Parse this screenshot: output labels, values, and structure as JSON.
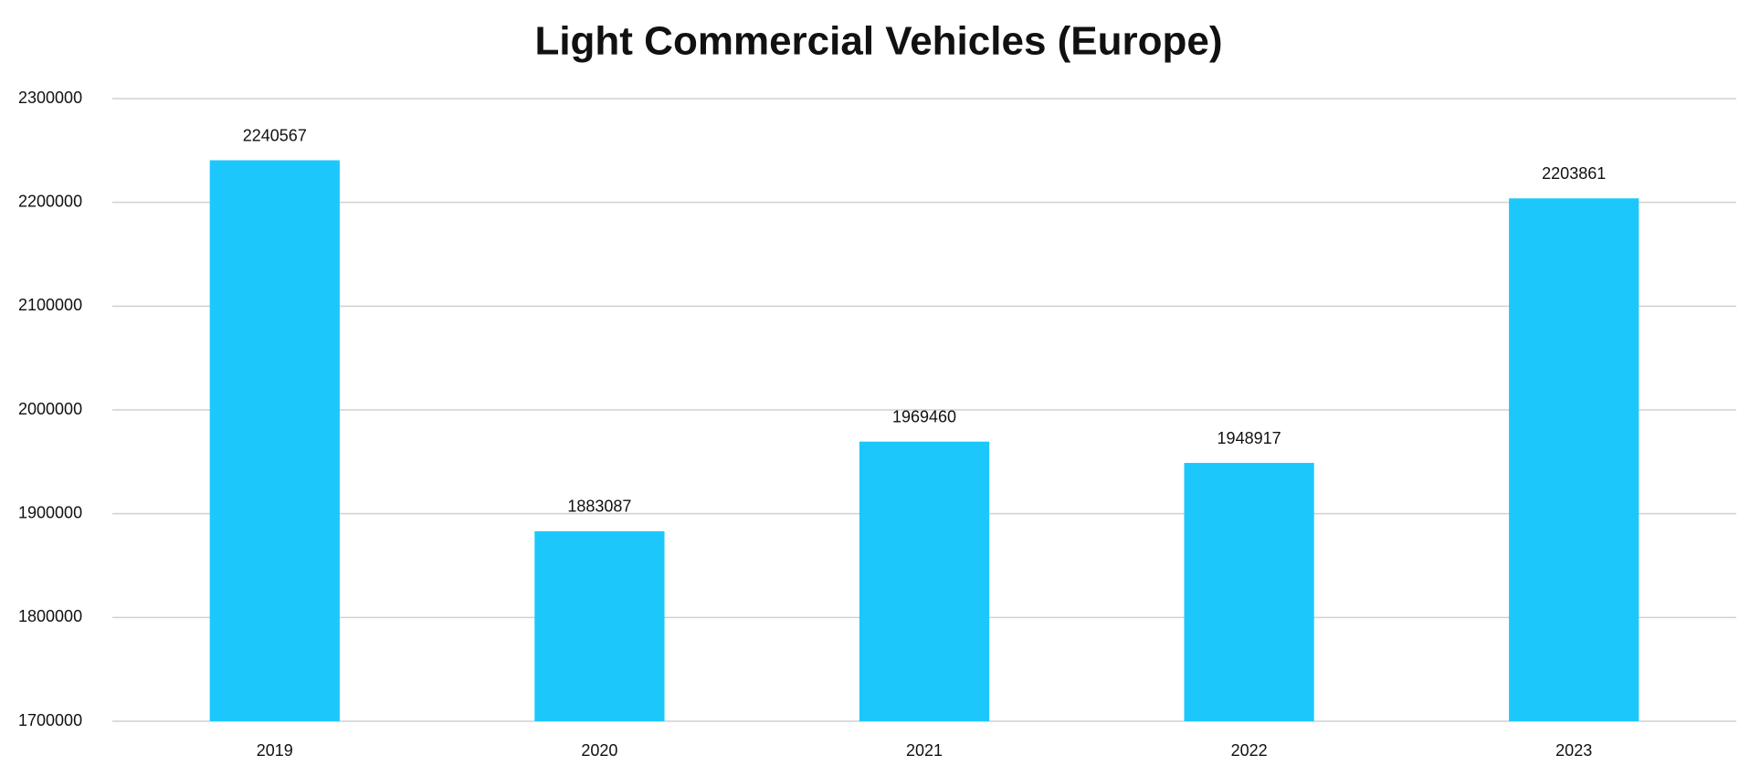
{
  "chart_data": {
    "type": "bar",
    "title": "Light Commercial Vehicles (Europe)",
    "categories": [
      "2019",
      "2020",
      "2021",
      "2022",
      "2023"
    ],
    "values": [
      2240567,
      1883087,
      1969460,
      1948917,
      2203861
    ],
    "color": "#1cc8fb",
    "ylim": [
      1700000,
      2300000
    ],
    "yticks": [
      1700000,
      1800000,
      1900000,
      2000000,
      2100000,
      2200000,
      2300000
    ],
    "grid": true
  }
}
